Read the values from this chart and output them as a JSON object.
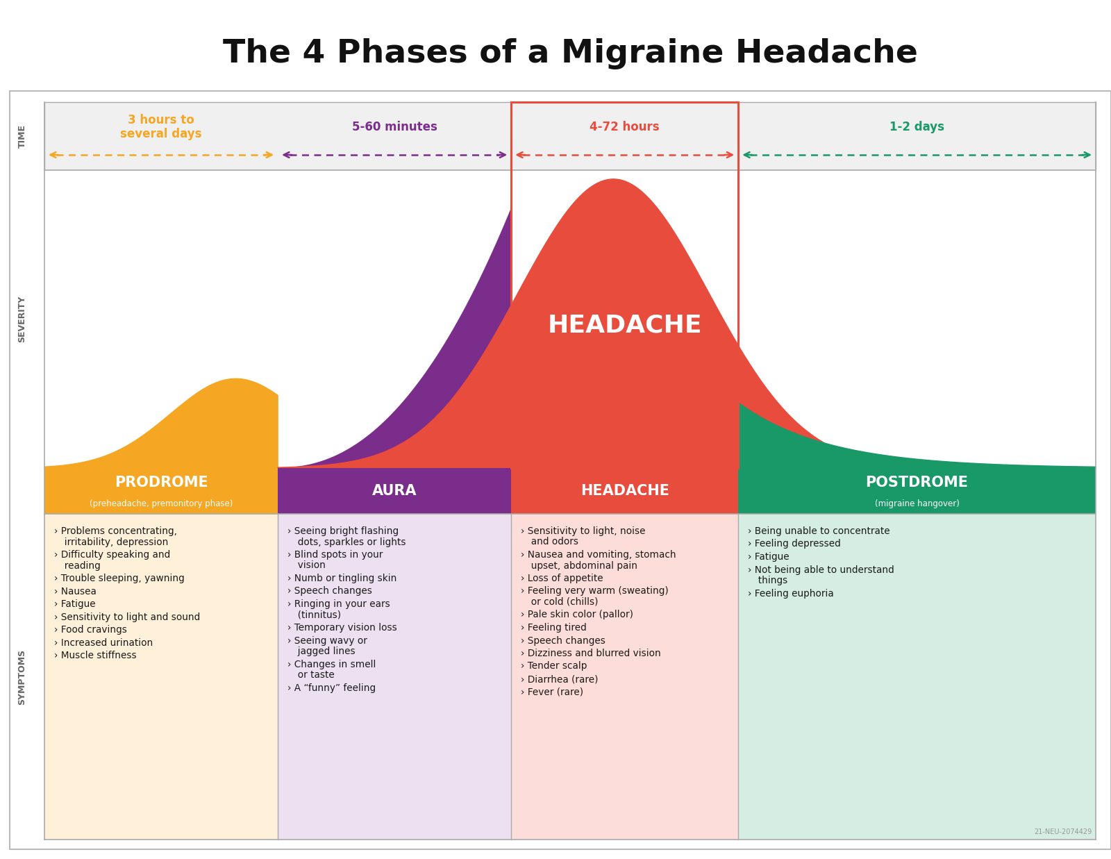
{
  "title": "The 4 Phases of a Migraine Headache",
  "title_fontsize": 34,
  "background_color": "#ffffff",
  "phases": [
    "PRODROME",
    "AURA",
    "HEADACHE",
    "POSTDROME"
  ],
  "phase_subtitles": [
    "(preheadache, premonitory phase)",
    "",
    "",
    "(migraine hangover)"
  ],
  "phase_colors": [
    "#F5A623",
    "#7B2D8B",
    "#E84C3D",
    "#1A9968"
  ],
  "phase_bg_colors": [
    "#FEF0D9",
    "#EDE0F0",
    "#FDDDD9",
    "#D5EDE3"
  ],
  "time_labels": [
    "3 hours to\nseveral days",
    "5-60 minutes",
    "4-72 hours",
    "1-2 days"
  ],
  "time_colors": [
    "#F5A623",
    "#7B2D8B",
    "#E84C3D",
    "#1A9968"
  ],
  "symptoms": [
    [
      "Problems concentrating,\n  irritability, depression",
      "Difficulty speaking and\n  reading",
      "Trouble sleeping, yawning",
      "Nausea",
      "Fatigue",
      "Sensitivity to light and sound",
      "Food cravings",
      "Increased urination",
      "Muscle stiffness"
    ],
    [
      "Seeing bright flashing\n  dots, sparkles or lights",
      "Blind spots in your\n  vision",
      "Numb or tingling skin",
      "Speech changes",
      "Ringing in your ears\n  (tinnitus)",
      "Temporary vision loss",
      "Seeing wavy or\n  jagged lines",
      "Changes in smell\n  or taste",
      "A “funny” feeling"
    ],
    [
      "Sensitivity to light, noise\n  and odors",
      "Nausea and vomiting, stomach\n  upset, abdominal pain",
      "Loss of appetite",
      "Feeling very warm (sweating)\n  or cold (chills)",
      "Pale skin color (pallor)",
      "Feeling tired",
      "Speech changes",
      "Dizziness and blurred vision",
      "Tender scalp",
      "Diarrhea (rare)",
      "Fever (rare)"
    ],
    [
      "Being unable to concentrate",
      "Feeling depressed",
      "Fatigue",
      "Not being able to understand\n  things",
      "Feeling euphoria"
    ]
  ],
  "sidebar_color": "#666666",
  "footer_text": "21-NEU-2074429"
}
